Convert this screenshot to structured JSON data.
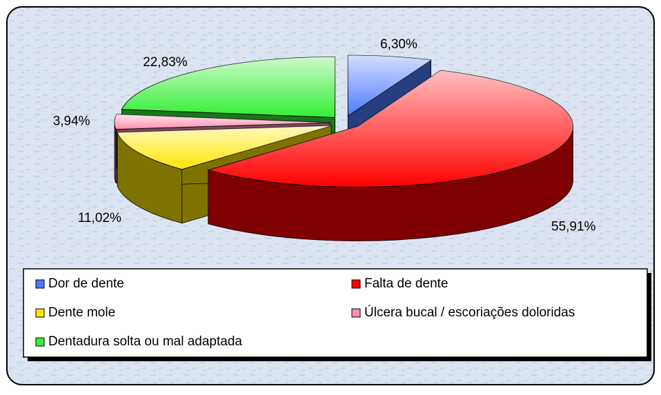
{
  "chart_data": {
    "type": "pie",
    "categories": [
      "Dor de dente",
      "Falta de dente",
      "Dente mole",
      "Úlcera bucal / escoriações doloridas",
      "Dentadura solta ou mal adaptada"
    ],
    "values": [
      6.3,
      55.91,
      11.02,
      3.94,
      22.83
    ],
    "value_labels": [
      "6,30%",
      "55,91%",
      "11,02%",
      "3,94%",
      "22,83%"
    ],
    "colors": [
      "#4d7bff",
      "#ff0000",
      "#ffe600",
      "#ff8fb0",
      "#33ee33"
    ],
    "legend": "bottom"
  }
}
